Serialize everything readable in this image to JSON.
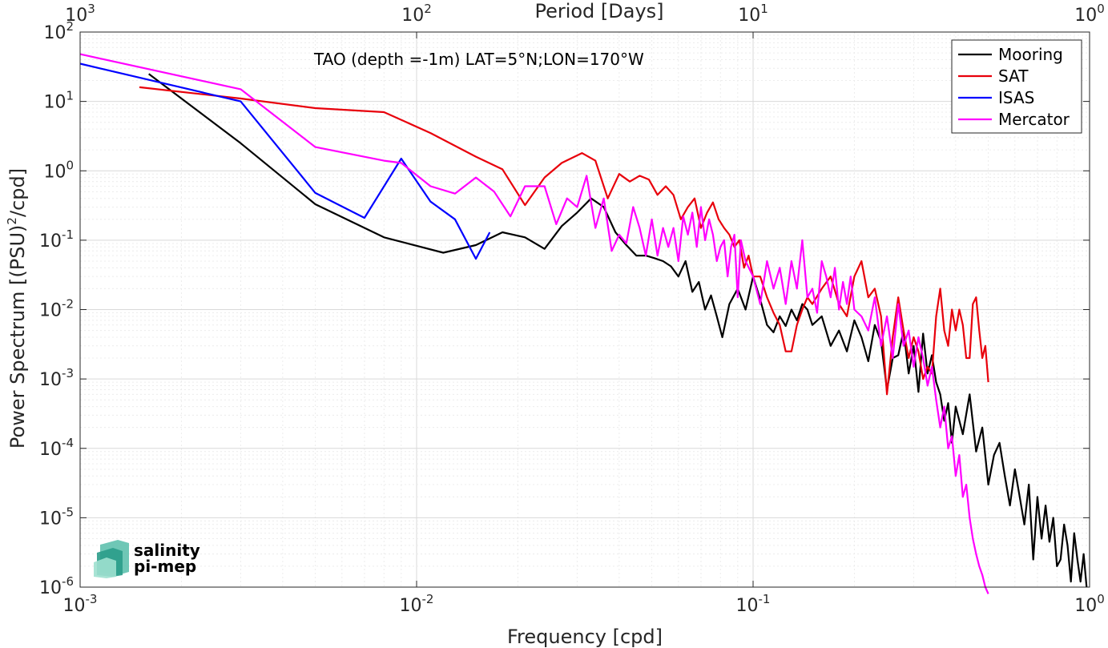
{
  "chart_data": {
    "type": "line",
    "title": "TAO (depth =-1m) LAT=5°N;LON=170°W",
    "xlabel": "Frequency [cpd]",
    "ylabel": "Power Spectrum [(PSU)",
    "ylabel_sup": "2",
    "ylabel_tail": "/cpd]",
    "x2label": "Period [Days]",
    "xscale": "log",
    "yscale": "log",
    "xlim": [
      0.001,
      1
    ],
    "ylim": [
      1e-06,
      100
    ],
    "grid": true,
    "legend_position": "top-right",
    "x_ticks": [
      {
        "base": "10",
        "exp": "-3"
      },
      {
        "base": "10",
        "exp": "-2"
      },
      {
        "base": "10",
        "exp": "-1"
      },
      {
        "base": "10",
        "exp": "0"
      }
    ],
    "x2_ticks": [
      {
        "base": "10",
        "exp": "3"
      },
      {
        "base": "10",
        "exp": "2"
      },
      {
        "base": "10",
        "exp": "1"
      },
      {
        "base": "10",
        "exp": "0"
      }
    ],
    "y_ticks": [
      {
        "base": "10",
        "exp": "2"
      },
      {
        "base": "10",
        "exp": "1"
      },
      {
        "base": "10",
        "exp": "0"
      },
      {
        "base": "10",
        "exp": "-1"
      },
      {
        "base": "10",
        "exp": "-2"
      },
      {
        "base": "10",
        "exp": "-3"
      },
      {
        "base": "10",
        "exp": "-4"
      },
      {
        "base": "10",
        "exp": "-5"
      },
      {
        "base": "10",
        "exp": "-6"
      }
    ],
    "series": [
      {
        "name": "Mooring",
        "color": "#000000",
        "x": [
          0.0016,
          0.003,
          0.005,
          0.008,
          0.012,
          0.015,
          0.018,
          0.021,
          0.024,
          0.027,
          0.03,
          0.033,
          0.036,
          0.039,
          0.042,
          0.045,
          0.048,
          0.051,
          0.054,
          0.057,
          0.06,
          0.063,
          0.066,
          0.069,
          0.072,
          0.075,
          0.078,
          0.081,
          0.085,
          0.09,
          0.095,
          0.1,
          0.105,
          0.11,
          0.115,
          0.12,
          0.125,
          0.13,
          0.135,
          0.14,
          0.145,
          0.15,
          0.16,
          0.17,
          0.18,
          0.19,
          0.2,
          0.21,
          0.22,
          0.23,
          0.24,
          0.25,
          0.26,
          0.27,
          0.28,
          0.29,
          0.3,
          0.31,
          0.32,
          0.33,
          0.34,
          0.35,
          0.36,
          0.37,
          0.38,
          0.39,
          0.4,
          0.42,
          0.44,
          0.46,
          0.48,
          0.5,
          0.52,
          0.54,
          0.56,
          0.58,
          0.6,
          0.62,
          0.64,
          0.66,
          0.68,
          0.7,
          0.72,
          0.74,
          0.76,
          0.78,
          0.8,
          0.82,
          0.84,
          0.86,
          0.88,
          0.9,
          0.92,
          0.94,
          0.96,
          0.98
        ],
        "y": [
          25,
          2.5,
          0.33,
          0.11,
          0.066,
          0.085,
          0.13,
          0.11,
          0.075,
          0.16,
          0.25,
          0.4,
          0.3,
          0.13,
          0.085,
          0.06,
          0.06,
          0.055,
          0.05,
          0.042,
          0.03,
          0.05,
          0.018,
          0.025,
          0.01,
          0.016,
          0.008,
          0.004,
          0.012,
          0.02,
          0.01,
          0.03,
          0.014,
          0.006,
          0.0047,
          0.008,
          0.0058,
          0.01,
          0.007,
          0.012,
          0.01,
          0.006,
          0.008,
          0.003,
          0.005,
          0.0025,
          0.007,
          0.004,
          0.0018,
          0.006,
          0.0035,
          0.0007,
          0.002,
          0.0022,
          0.005,
          0.0012,
          0.003,
          0.00065,
          0.0045,
          0.0012,
          0.0022,
          0.0009,
          0.0006,
          0.00025,
          0.00045,
          0.00012,
          0.0004,
          0.00016,
          0.0006,
          9e-05,
          0.0002,
          3e-05,
          8e-05,
          0.00012,
          4e-05,
          1.5e-05,
          5e-05,
          2e-05,
          8e-06,
          3e-05,
          2.5e-06,
          2e-05,
          5e-06,
          1.5e-05,
          4.5e-06,
          1e-05,
          2e-06,
          2.5e-06,
          8e-06,
          4e-06,
          1.2e-06,
          6e-06,
          2.5e-06,
          1.2e-06,
          3e-06,
          1e-06
        ]
      },
      {
        "name": "SAT",
        "color": "#e8000b",
        "x": [
          0.0015,
          0.003,
          0.005,
          0.008,
          0.011,
          0.015,
          0.018,
          0.021,
          0.024,
          0.027,
          0.031,
          0.034,
          0.037,
          0.04,
          0.043,
          0.046,
          0.049,
          0.052,
          0.055,
          0.058,
          0.061,
          0.064,
          0.067,
          0.07,
          0.073,
          0.076,
          0.079,
          0.082,
          0.085,
          0.088,
          0.091,
          0.094,
          0.097,
          0.1,
          0.105,
          0.11,
          0.115,
          0.12,
          0.125,
          0.13,
          0.135,
          0.14,
          0.145,
          0.15,
          0.16,
          0.17,
          0.18,
          0.19,
          0.2,
          0.21,
          0.22,
          0.23,
          0.24,
          0.25,
          0.26,
          0.27,
          0.28,
          0.29,
          0.3,
          0.31,
          0.32,
          0.33,
          0.34,
          0.35,
          0.36,
          0.37,
          0.38,
          0.39,
          0.4,
          0.41,
          0.42,
          0.43,
          0.44,
          0.45,
          0.46,
          0.47,
          0.48,
          0.49,
          0.5
        ],
        "y": [
          16,
          11,
          8,
          7,
          3.5,
          1.6,
          1.05,
          0.32,
          0.8,
          1.3,
          1.8,
          1.4,
          0.4,
          0.9,
          0.7,
          0.85,
          0.75,
          0.45,
          0.6,
          0.45,
          0.2,
          0.3,
          0.4,
          0.15,
          0.25,
          0.35,
          0.2,
          0.15,
          0.12,
          0.08,
          0.1,
          0.04,
          0.06,
          0.03,
          0.03,
          0.015,
          0.009,
          0.006,
          0.0025,
          0.0025,
          0.006,
          0.01,
          0.015,
          0.012,
          0.02,
          0.03,
          0.012,
          0.008,
          0.03,
          0.05,
          0.015,
          0.02,
          0.008,
          0.0006,
          0.004,
          0.015,
          0.005,
          0.002,
          0.004,
          0.0025,
          0.001,
          0.0015,
          0.0012,
          0.008,
          0.02,
          0.005,
          0.003,
          0.01,
          0.005,
          0.01,
          0.006,
          0.002,
          0.002,
          0.012,
          0.015,
          0.005,
          0.002,
          0.003,
          0.0009
        ]
      },
      {
        "name": "ISAS",
        "color": "#0000ff",
        "x": [
          0.001,
          0.003,
          0.005,
          0.007,
          0.009,
          0.011,
          0.013,
          0.015,
          0.0165
        ],
        "y": [
          35,
          10,
          0.48,
          0.21,
          1.5,
          0.36,
          0.2,
          0.054,
          0.13
        ]
      },
      {
        "name": "Mercator",
        "color": "#ff00ff",
        "x": [
          0.001,
          0.003,
          0.005,
          0.008,
          0.009,
          0.011,
          0.013,
          0.015,
          0.017,
          0.019,
          0.021,
          0.024,
          0.026,
          0.028,
          0.03,
          0.032,
          0.034,
          0.036,
          0.038,
          0.04,
          0.042,
          0.044,
          0.046,
          0.048,
          0.05,
          0.052,
          0.054,
          0.056,
          0.058,
          0.06,
          0.062,
          0.064,
          0.066,
          0.068,
          0.07,
          0.072,
          0.074,
          0.076,
          0.078,
          0.08,
          0.082,
          0.084,
          0.086,
          0.088,
          0.09,
          0.092,
          0.095,
          0.1,
          0.105,
          0.11,
          0.115,
          0.12,
          0.125,
          0.13,
          0.135,
          0.14,
          0.145,
          0.15,
          0.155,
          0.16,
          0.165,
          0.17,
          0.175,
          0.18,
          0.185,
          0.19,
          0.195,
          0.2,
          0.21,
          0.22,
          0.23,
          0.24,
          0.25,
          0.26,
          0.27,
          0.28,
          0.29,
          0.3,
          0.31,
          0.32,
          0.33,
          0.34,
          0.35,
          0.36,
          0.37,
          0.38,
          0.39,
          0.4,
          0.41,
          0.42,
          0.43,
          0.44,
          0.45,
          0.46,
          0.47,
          0.48,
          0.49,
          0.5
        ],
        "y": [
          48,
          15,
          2.2,
          1.4,
          1.3,
          0.6,
          0.47,
          0.8,
          0.5,
          0.22,
          0.6,
          0.6,
          0.17,
          0.4,
          0.3,
          0.85,
          0.15,
          0.4,
          0.07,
          0.12,
          0.09,
          0.3,
          0.15,
          0.06,
          0.2,
          0.06,
          0.15,
          0.08,
          0.15,
          0.05,
          0.22,
          0.12,
          0.25,
          0.08,
          0.3,
          0.1,
          0.2,
          0.12,
          0.05,
          0.08,
          0.1,
          0.03,
          0.08,
          0.12,
          0.015,
          0.1,
          0.05,
          0.03,
          0.012,
          0.05,
          0.02,
          0.04,
          0.012,
          0.05,
          0.02,
          0.1,
          0.015,
          0.02,
          0.009,
          0.05,
          0.03,
          0.015,
          0.04,
          0.01,
          0.025,
          0.012,
          0.03,
          0.01,
          0.008,
          0.005,
          0.015,
          0.003,
          0.008,
          0.002,
          0.012,
          0.003,
          0.005,
          0.0015,
          0.004,
          0.002,
          0.0008,
          0.0015,
          0.0005,
          0.0002,
          0.0004,
          0.0001,
          0.00015,
          4e-05,
          8e-05,
          2e-05,
          3e-05,
          1e-05,
          5e-06,
          3e-06,
          2e-06,
          1.5e-06,
          1e-06,
          8e-07
        ]
      }
    ]
  },
  "logo": {
    "line1": "salinity",
    "line2": "pi-mep",
    "color": "#1a9e8c"
  }
}
